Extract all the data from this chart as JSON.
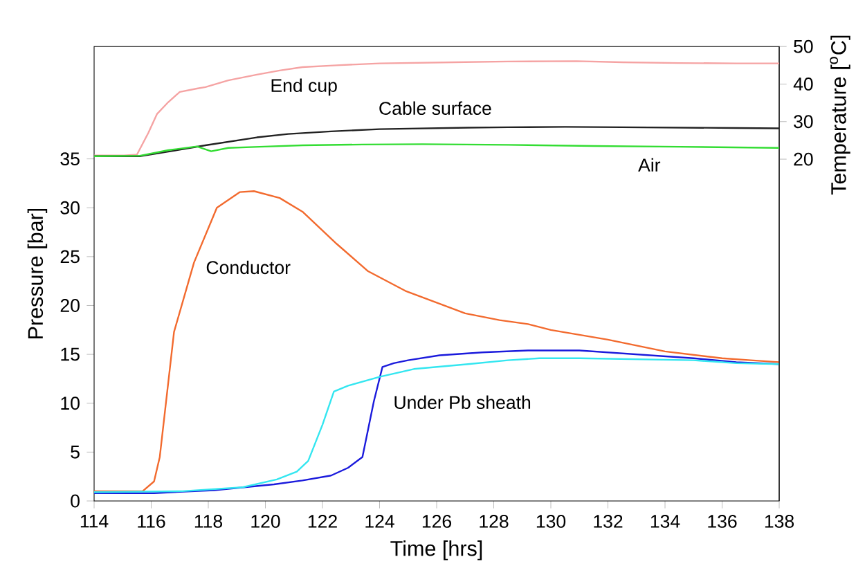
{
  "chart_data": {
    "type": "line",
    "xlabel": "Time [hrs]",
    "ylabel": "Pressure [bar]",
    "y2label": "Temperature [$^{o}$C]",
    "xlim": [
      114,
      138
    ],
    "xticks": [
      114,
      116,
      118,
      120,
      122,
      124,
      126,
      128,
      130,
      132,
      134,
      136,
      138
    ],
    "ylim": [
      0,
      46.5
    ],
    "yticks": [
      0,
      5,
      10,
      15,
      20,
      25,
      30,
      35
    ],
    "y2lim": [
      -71,
      50
    ],
    "y2ticks": [
      20,
      30,
      40,
      50
    ],
    "series": [
      {
        "name": "End cup",
        "color": "#f5a3a3",
        "axis": "y2",
        "x": [
          114,
          115.05,
          115.5,
          115.9,
          116.2,
          116.6,
          117.0,
          117.6,
          117.9,
          118.7,
          119.7,
          120.5,
          121.3,
          122.5,
          124.0,
          126.6,
          128.5,
          130.9,
          132.5,
          134.5,
          136.5,
          138
        ],
        "values": [
          21,
          21,
          21.2,
          27,
          32.0,
          35.2,
          37.9,
          38.8,
          39.2,
          41,
          42.5,
          43.6,
          44.5,
          45.0,
          45.5,
          45.8,
          46.0,
          46.1,
          45.8,
          45.6,
          45.5,
          45.5
        ]
      },
      {
        "name": "Cable surface",
        "color": "#222222",
        "axis": "y2",
        "x": [
          114,
          115.6,
          116.6,
          117.9,
          119.7,
          120.8,
          122.3,
          124.0,
          127.1,
          128.5,
          130.5,
          132.5,
          134.5,
          136.5,
          138
        ],
        "values": [
          20.8,
          20.8,
          22.0,
          23.7,
          25.8,
          26.7,
          27.4,
          28.0,
          28.4,
          28.5,
          28.6,
          28.5,
          28.4,
          28.3,
          28.2
        ]
      },
      {
        "name": "Air",
        "color": "#33dd33",
        "axis": "y2",
        "x": [
          114,
          115.6,
          116.6,
          117.6,
          118.1,
          118.7,
          119.8,
          121.3,
          123.4,
          125.5,
          128.5,
          131.5,
          134.5,
          138
        ],
        "values": [
          20.8,
          20.9,
          22.4,
          23.4,
          22.1,
          23.0,
          23.3,
          23.7,
          23.9,
          24.0,
          23.8,
          23.5,
          23.3,
          23.0
        ]
      },
      {
        "name": "Conductor",
        "color": "#f26a2e",
        "x": [
          114,
          115.7,
          116.1,
          116.3,
          116.8,
          117.5,
          118.3,
          119.1,
          119.6,
          120.5,
          121.3,
          122.5,
          123.6,
          124.9,
          126.0,
          127.0,
          128.2,
          129.2,
          130,
          132,
          134,
          136,
          137,
          138
        ],
        "values": [
          1.0,
          1.0,
          2.0,
          4.5,
          17.3,
          24.4,
          30.0,
          31.6,
          31.7,
          31.0,
          29.6,
          26.3,
          23.5,
          21.5,
          20.3,
          19.2,
          18.5,
          18.1,
          17.5,
          16.5,
          15.3,
          14.6,
          14.4,
          14.2
        ]
      },
      {
        "name": "Under Pb sheath",
        "color": "#1a1adc",
        "x": [
          114,
          116.1,
          118.2,
          120.3,
          121.3,
          122.3,
          122.9,
          123.4,
          123.8,
          124.1,
          124.5,
          125.0,
          126.1,
          127.6,
          129.2,
          131,
          133,
          135,
          136.5,
          138
        ],
        "values": [
          0.8,
          0.8,
          1.1,
          1.7,
          2.1,
          2.6,
          3.4,
          4.5,
          10.2,
          13.7,
          14.1,
          14.4,
          14.9,
          15.2,
          15.4,
          15.4,
          15.0,
          14.6,
          14.2,
          14.0
        ]
      },
      {
        "color": "#33e6f0",
        "x": [
          114,
          117.1,
          119.2,
          120.4,
          121.1,
          121.5,
          122.0,
          122.4,
          122.9,
          124.0,
          125.2,
          127.1,
          128.5,
          129.6,
          131,
          133,
          135,
          136.5,
          138
        ],
        "values": [
          0.9,
          1.0,
          1.4,
          2.2,
          3.0,
          4.1,
          7.8,
          11.2,
          11.8,
          12.7,
          13.5,
          14.0,
          14.4,
          14.6,
          14.6,
          14.5,
          14.4,
          14.1,
          14.0
        ]
      }
    ]
  }
}
